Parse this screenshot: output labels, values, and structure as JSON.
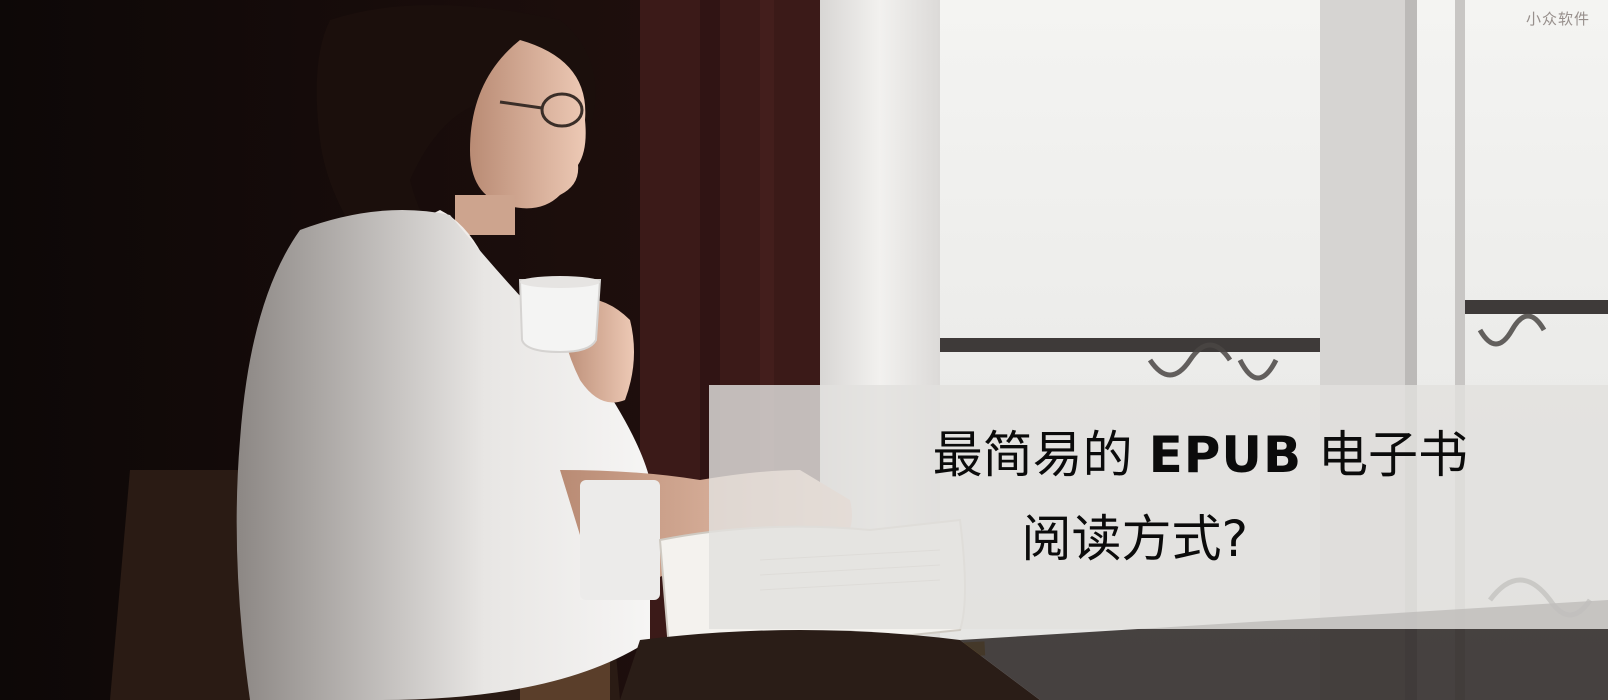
{
  "watermark": {
    "text": "小众软件"
  },
  "headline": {
    "line1_prefix": "最简易的",
    "line1_emphasis": "EPUB",
    "line1_suffix": "电子书",
    "line2": "阅读方式?"
  },
  "colors": {
    "panel": "#e2e0de",
    "text": "#0b0b0b",
    "room_dark": "#1a0e0c",
    "curtain": "#3b1a18",
    "window_light": "#eeeeec"
  }
}
